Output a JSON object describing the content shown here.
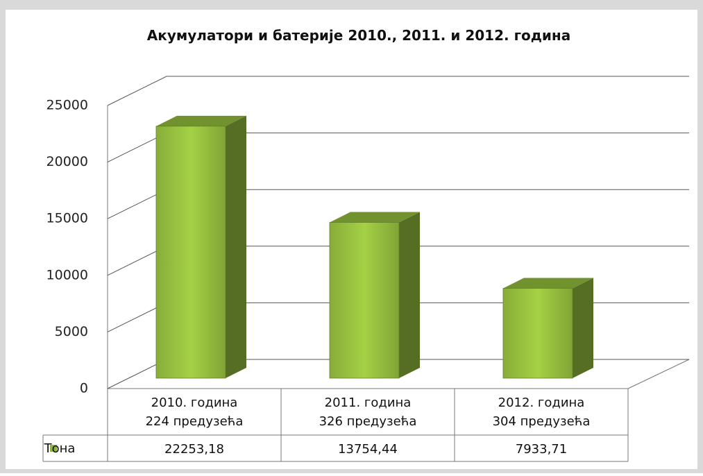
{
  "chart_data": {
    "type": "bar3d",
    "title": "Акумулатори и батерије 2010., 2011. и 2012. година",
    "categories": [
      "2010. година\n224 предузећа",
      "2011. година\n326 предузећа",
      "2012. година\n304 предузећа"
    ],
    "series": [
      {
        "name": "Тона",
        "color": "#8fb63c",
        "values": [
          22253.18,
          13754.44,
          7933.71
        ],
        "value_labels": [
          "22253,18",
          "13754,44",
          "7933,71"
        ]
      }
    ],
    "ylim": [
      0,
      25000
    ],
    "yticks": [
      0,
      5000,
      10000,
      15000,
      20000,
      25000
    ],
    "grid": true,
    "legend": "data-table"
  }
}
